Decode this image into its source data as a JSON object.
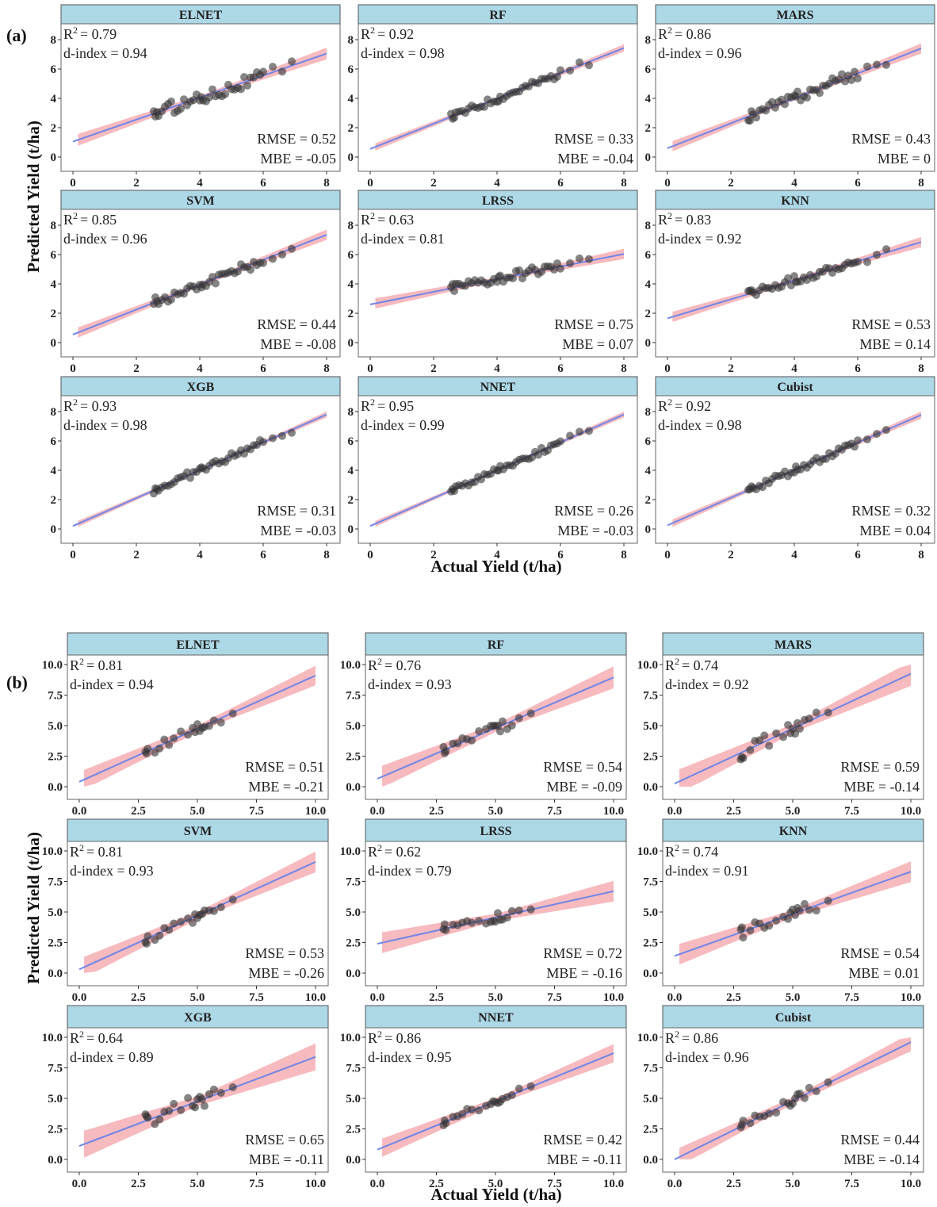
{
  "chart_data": [
    {
      "type": "scatter",
      "label": "(a)",
      "xlabel": "Actual Yield (t/ha)",
      "ylabel": "Predicted Yield (t/ha)",
      "xlim": [
        0,
        8
      ],
      "ylim": [
        0,
        8
      ],
      "ticks": [
        0,
        2,
        4,
        6,
        8
      ],
      "tick_labels": [
        "0",
        "2",
        "4",
        "6",
        "8"
      ],
      "actual": [
        2.55,
        2.6,
        2.65,
        2.7,
        2.8,
        2.9,
        3.0,
        3.1,
        3.2,
        3.3,
        3.4,
        3.5,
        3.6,
        3.7,
        3.8,
        3.9,
        4.0,
        4.05,
        4.1,
        4.2,
        4.3,
        4.4,
        4.5,
        4.6,
        4.7,
        4.8,
        4.9,
        5.0,
        5.1,
        5.2,
        5.3,
        5.4,
        5.5,
        5.6,
        5.7,
        5.8,
        5.9,
        6.0,
        6.3,
        6.6,
        6.9
      ],
      "panels": [
        {
          "model": "ELNET",
          "r2_label": "R",
          "r2_sup": "2",
          "r2_text": "= 0.79",
          "d_index": "d-index = 0.94",
          "rmse": "RMSE = 0.52",
          "mbe": "MBE = -0.05",
          "intercept": 1.05,
          "slope": 0.75,
          "band": 0.4,
          "noise": 0.45
        },
        {
          "model": "RF",
          "r2_label": "R",
          "r2_sup": "2",
          "r2_text": "= 0.92",
          "d_index": "d-index = 0.98",
          "rmse": "RMSE = 0.33",
          "mbe": "MBE = -0.04",
          "intercept": 0.55,
          "slope": 0.86,
          "band": 0.25,
          "noise": 0.25
        },
        {
          "model": "MARS",
          "r2_label": "R",
          "r2_sup": "2",
          "r2_text": "= 0.86",
          "d_index": "d-index = 0.96",
          "rmse": "RMSE = 0.43",
          "mbe": "MBE = 0",
          "intercept": 0.6,
          "slope": 0.85,
          "band": 0.35,
          "noise": 0.38
        },
        {
          "model": "SVM",
          "r2_label": "R",
          "r2_sup": "2",
          "r2_text": "= 0.85",
          "d_index": "d-index = 0.96",
          "rmse": "RMSE = 0.44",
          "mbe": "MBE = -0.08",
          "intercept": 0.55,
          "slope": 0.85,
          "band": 0.35,
          "noise": 0.35
        },
        {
          "model": "LRSS",
          "r2_label": "R",
          "r2_sup": "2",
          "r2_text": "= 0.63",
          "d_index": "d-index = 0.81",
          "rmse": "RMSE = 0.75",
          "mbe": "MBE = 0.07",
          "intercept": 2.6,
          "slope": 0.43,
          "band": 0.35,
          "noise": 0.35
        },
        {
          "model": "KNN",
          "r2_label": "R",
          "r2_sup": "2",
          "r2_text": "= 0.83",
          "d_index": "d-index = 0.92",
          "rmse": "RMSE = 0.53",
          "mbe": "MBE = 0.14",
          "intercept": 1.65,
          "slope": 0.65,
          "band": 0.35,
          "noise": 0.3
        },
        {
          "model": "XGB",
          "r2_label": "R",
          "r2_sup": "2",
          "r2_text": "= 0.93",
          "d_index": "d-index = 0.98",
          "rmse": "RMSE = 0.31",
          "mbe": "MBE = -0.03",
          "intercept": 0.2,
          "slope": 0.95,
          "band": 0.2,
          "noise": 0.25
        },
        {
          "model": "NNET",
          "r2_label": "R",
          "r2_sup": "2",
          "r2_text": "= 0.95",
          "d_index": "d-index = 0.99",
          "rmse": "RMSE = 0.26",
          "mbe": "MBE = -0.03",
          "intercept": 0.2,
          "slope": 0.95,
          "band": 0.2,
          "noise": 0.2
        },
        {
          "model": "Cubist",
          "r2_label": "R",
          "r2_sup": "2",
          "r2_text": "= 0.92",
          "d_index": "d-index = 0.98",
          "rmse": "RMSE = 0.32",
          "mbe": "MBE = 0.04",
          "intercept": 0.25,
          "slope": 0.94,
          "band": 0.25,
          "noise": 0.25
        }
      ]
    },
    {
      "type": "scatter",
      "label": "(b)",
      "xlabel": "Actual Yield (t/ha)",
      "ylabel": "Predicted Yield (t/ha)",
      "xlim": [
        0,
        10
      ],
      "ylim": [
        0,
        10
      ],
      "ticks": [
        0,
        2.5,
        5,
        7.5,
        10
      ],
      "tick_labels": [
        "0.0",
        "2.5",
        "5.0",
        "7.5",
        "10.0"
      ],
      "actual": [
        2.8,
        2.85,
        2.9,
        3.2,
        3.4,
        3.6,
        3.8,
        4.0,
        4.3,
        4.6,
        4.8,
        4.9,
        5.0,
        5.1,
        5.2,
        5.3,
        5.5,
        5.7,
        6.0,
        6.5
      ],
      "panels": [
        {
          "model": "ELNET",
          "r2_label": "R",
          "r2_sup": "2",
          "r2_text": "= 0.81",
          "d_index": "d-index = 0.94",
          "rmse": "RMSE = 0.51",
          "mbe": "MBE = -0.21",
          "intercept": 0.4,
          "slope": 0.87,
          "band": 0.8,
          "noise": 0.45
        },
        {
          "model": "RF",
          "r2_label": "R",
          "r2_sup": "2",
          "r2_text": "= 0.76",
          "d_index": "d-index = 0.93",
          "rmse": "RMSE = 0.54",
          "mbe": "MBE = -0.09",
          "intercept": 0.65,
          "slope": 0.83,
          "band": 0.9,
          "noise": 0.5
        },
        {
          "model": "MARS",
          "r2_label": "R",
          "r2_sup": "2",
          "r2_text": "= 0.74",
          "d_index": "d-index = 0.92",
          "rmse": "RMSE = 0.59",
          "mbe": "MBE = -0.14",
          "intercept": 0.25,
          "slope": 0.9,
          "band": 1.0,
          "noise": 0.55
        },
        {
          "model": "SVM",
          "r2_label": "R",
          "r2_sup": "2",
          "r2_text": "= 0.81",
          "d_index": "d-index = 0.93",
          "rmse": "RMSE = 0.53",
          "mbe": "MBE = -0.26",
          "intercept": 0.3,
          "slope": 0.88,
          "band": 0.85,
          "noise": 0.45
        },
        {
          "model": "LRSS",
          "r2_label": "R",
          "r2_sup": "2",
          "r2_text": "= 0.62",
          "d_index": "d-index = 0.79",
          "rmse": "RMSE = 0.72",
          "mbe": "MBE = -0.16",
          "intercept": 2.4,
          "slope": 0.43,
          "band": 0.85,
          "noise": 0.4
        },
        {
          "model": "KNN",
          "r2_label": "R",
          "r2_sup": "2",
          "r2_text": "= 0.74",
          "d_index": "d-index = 0.91",
          "rmse": "RMSE = 0.54",
          "mbe": "MBE = 0.01",
          "intercept": 1.4,
          "slope": 0.69,
          "band": 0.85,
          "noise": 0.5
        },
        {
          "model": "XGB",
          "r2_label": "R",
          "r2_sup": "2",
          "r2_text": "= 0.64",
          "d_index": "d-index = 0.89",
          "rmse": "RMSE = 0.65",
          "mbe": "MBE = -0.11",
          "intercept": 1.1,
          "slope": 0.73,
          "band": 1.1,
          "noise": 0.6
        },
        {
          "model": "NNET",
          "r2_label": "R",
          "r2_sup": "2",
          "r2_text": "= 0.86",
          "d_index": "d-index = 0.95",
          "rmse": "RMSE = 0.42",
          "mbe": "MBE = -0.11",
          "intercept": 0.8,
          "slope": 0.79,
          "band": 0.75,
          "noise": 0.35
        },
        {
          "model": "Cubist",
          "r2_label": "R",
          "r2_sup": "2",
          "r2_text": "= 0.86",
          "d_index": "d-index = 0.96",
          "rmse": "RMSE = 0.44",
          "mbe": "MBE = -0.14",
          "intercept": 0.0,
          "slope": 0.96,
          "band": 0.75,
          "noise": 0.4
        }
      ]
    }
  ],
  "colors": {
    "strip_fill": "#add8e6",
    "strip_stroke": "#555555",
    "line": "#6f86e8",
    "band": "#f4a3a8",
    "point": "#333333",
    "panel_border": "#666666"
  }
}
